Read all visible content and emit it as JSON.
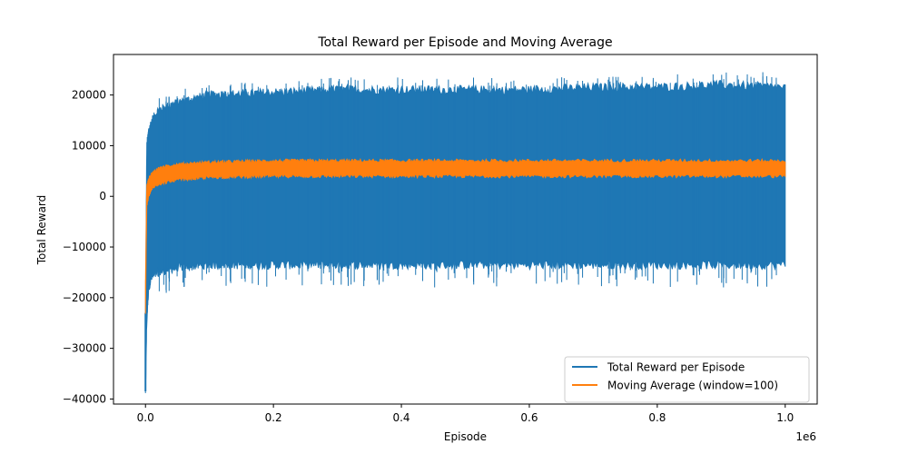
{
  "chart_data": {
    "type": "line",
    "title": "Total Reward per Episode and Moving Average",
    "xlabel": "Episode",
    "ylabel": "Total Reward",
    "x_offset_label": "1e6",
    "xlim": [
      -0.05,
      1.05
    ],
    "ylim": [
      -41000,
      28000
    ],
    "x_ticks": [
      0.0,
      0.2,
      0.4,
      0.6,
      0.8,
      1.0
    ],
    "x_tick_labels": [
      "0.0",
      "0.2",
      "0.4",
      "0.6",
      "0.8",
      "1.0"
    ],
    "y_ticks": [
      -40000,
      -30000,
      -20000,
      -10000,
      0,
      10000,
      20000
    ],
    "y_tick_labels": [
      "−40000",
      "−30000",
      "−20000",
      "−10000",
      "0",
      "10000",
      "20000"
    ],
    "legend_position": "lower right",
    "grid": false,
    "series": [
      {
        "name": "Total Reward per Episode",
        "color": "#1f77b4",
        "x": [
          0.0,
          0.002,
          0.005,
          0.01,
          0.02,
          0.05,
          0.1,
          0.2,
          0.3,
          0.4,
          0.5,
          0.6,
          0.7,
          0.8,
          0.9,
          1.0
        ],
        "y_upper": [
          -23000,
          10000,
          13000,
          15000,
          17000,
          18500,
          20000,
          20500,
          21000,
          21000,
          21000,
          21000,
          21500,
          21500,
          22000,
          21500
        ],
        "y_lower": [
          -38500,
          -25000,
          -18000,
          -16000,
          -15000,
          -14000,
          -13500,
          -13500,
          -13500,
          -13500,
          -13500,
          -13500,
          -13500,
          -13500,
          -13500,
          -13500
        ],
        "y_max": 24500,
        "y_min": -38500
      },
      {
        "name": "Moving Average (window=100)",
        "color": "#ff7f0e",
        "x": [
          0.0,
          0.002,
          0.005,
          0.01,
          0.02,
          0.05,
          0.1,
          0.2,
          0.3,
          0.4,
          0.5,
          0.6,
          0.7,
          0.8,
          0.9,
          1.0
        ],
        "y_upper": [
          -17000,
          2000,
          3500,
          4500,
          5500,
          6300,
          6700,
          7000,
          7000,
          7000,
          7000,
          7000,
          7000,
          7000,
          7000,
          7000
        ],
        "y_lower": [
          -23000,
          -2000,
          0,
          1500,
          2500,
          3300,
          3800,
          4000,
          4000,
          4000,
          4000,
          4000,
          4000,
          4000,
          4000,
          4000
        ]
      }
    ]
  }
}
